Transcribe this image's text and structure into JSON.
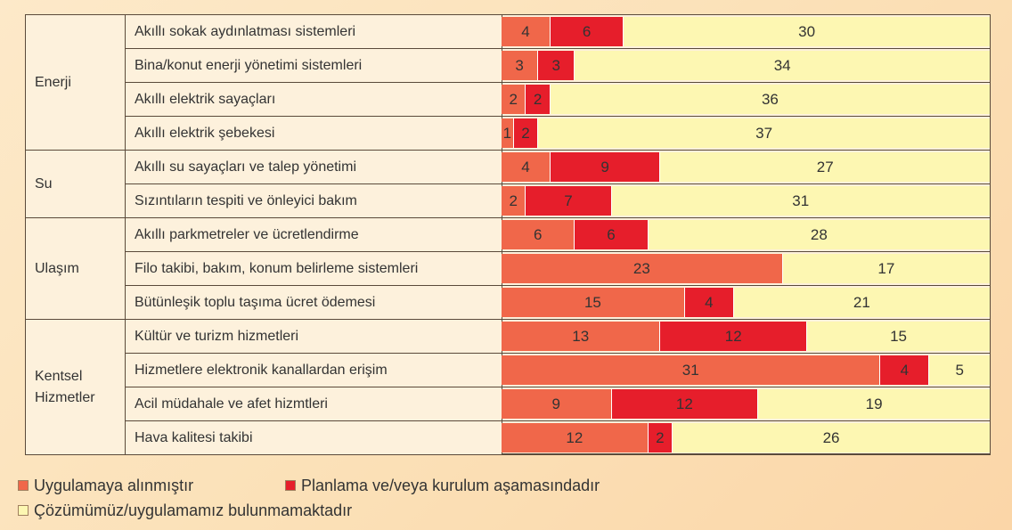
{
  "chart_data": {
    "type": "bar",
    "orientation": "horizontal",
    "stacked": true,
    "groups": [
      {
        "name": "Enerji",
        "categories": [
          "Akıllı sokak aydınlatması sistemleri",
          "Bina/konut enerji yönetimi sistemleri",
          "Akıllı elektrik sayaçları",
          "Akıllı elektrik şebekesi"
        ]
      },
      {
        "name": "Su",
        "categories": [
          "Akıllı su sayaçları ve talep yönetimi",
          "Sızıntıların tespiti ve önleyici bakım"
        ]
      },
      {
        "name": "Ulaşım",
        "categories": [
          "Akıllı parkmetreler ve ücretlendirme",
          "Filo takibi, bakım, konum belirleme sistemleri",
          "Bütünleşik toplu taşıma ücret ödemesi"
        ]
      },
      {
        "name": "Kentsel Hizmetler",
        "categories": [
          "Kültür ve turizm hizmetleri",
          "Hizmetlere elektronik kanallardan erişim",
          "Acil müdahale ve afet hizmtleri",
          "Hava kalitesi takibi"
        ]
      }
    ],
    "series": [
      {
        "name": "Uygulamaya alınmıştır",
        "color": "#f0674a",
        "values": [
          4,
          3,
          2,
          1,
          4,
          2,
          6,
          23,
          15,
          13,
          31,
          9,
          12
        ]
      },
      {
        "name": "Planlama ve/veya kurulum aşamasındadır",
        "color": "#e61e2b",
        "values": [
          6,
          3,
          2,
          2,
          9,
          7,
          6,
          0,
          4,
          12,
          4,
          12,
          2
        ]
      },
      {
        "name": "Çözümümüz/uygulamamız bulunmamaktadır",
        "color": "#fdf7b2",
        "values": [
          30,
          34,
          36,
          37,
          27,
          31,
          28,
          17,
          21,
          15,
          5,
          19,
          26
        ]
      }
    ],
    "xlim": [
      0,
      40
    ]
  }
}
